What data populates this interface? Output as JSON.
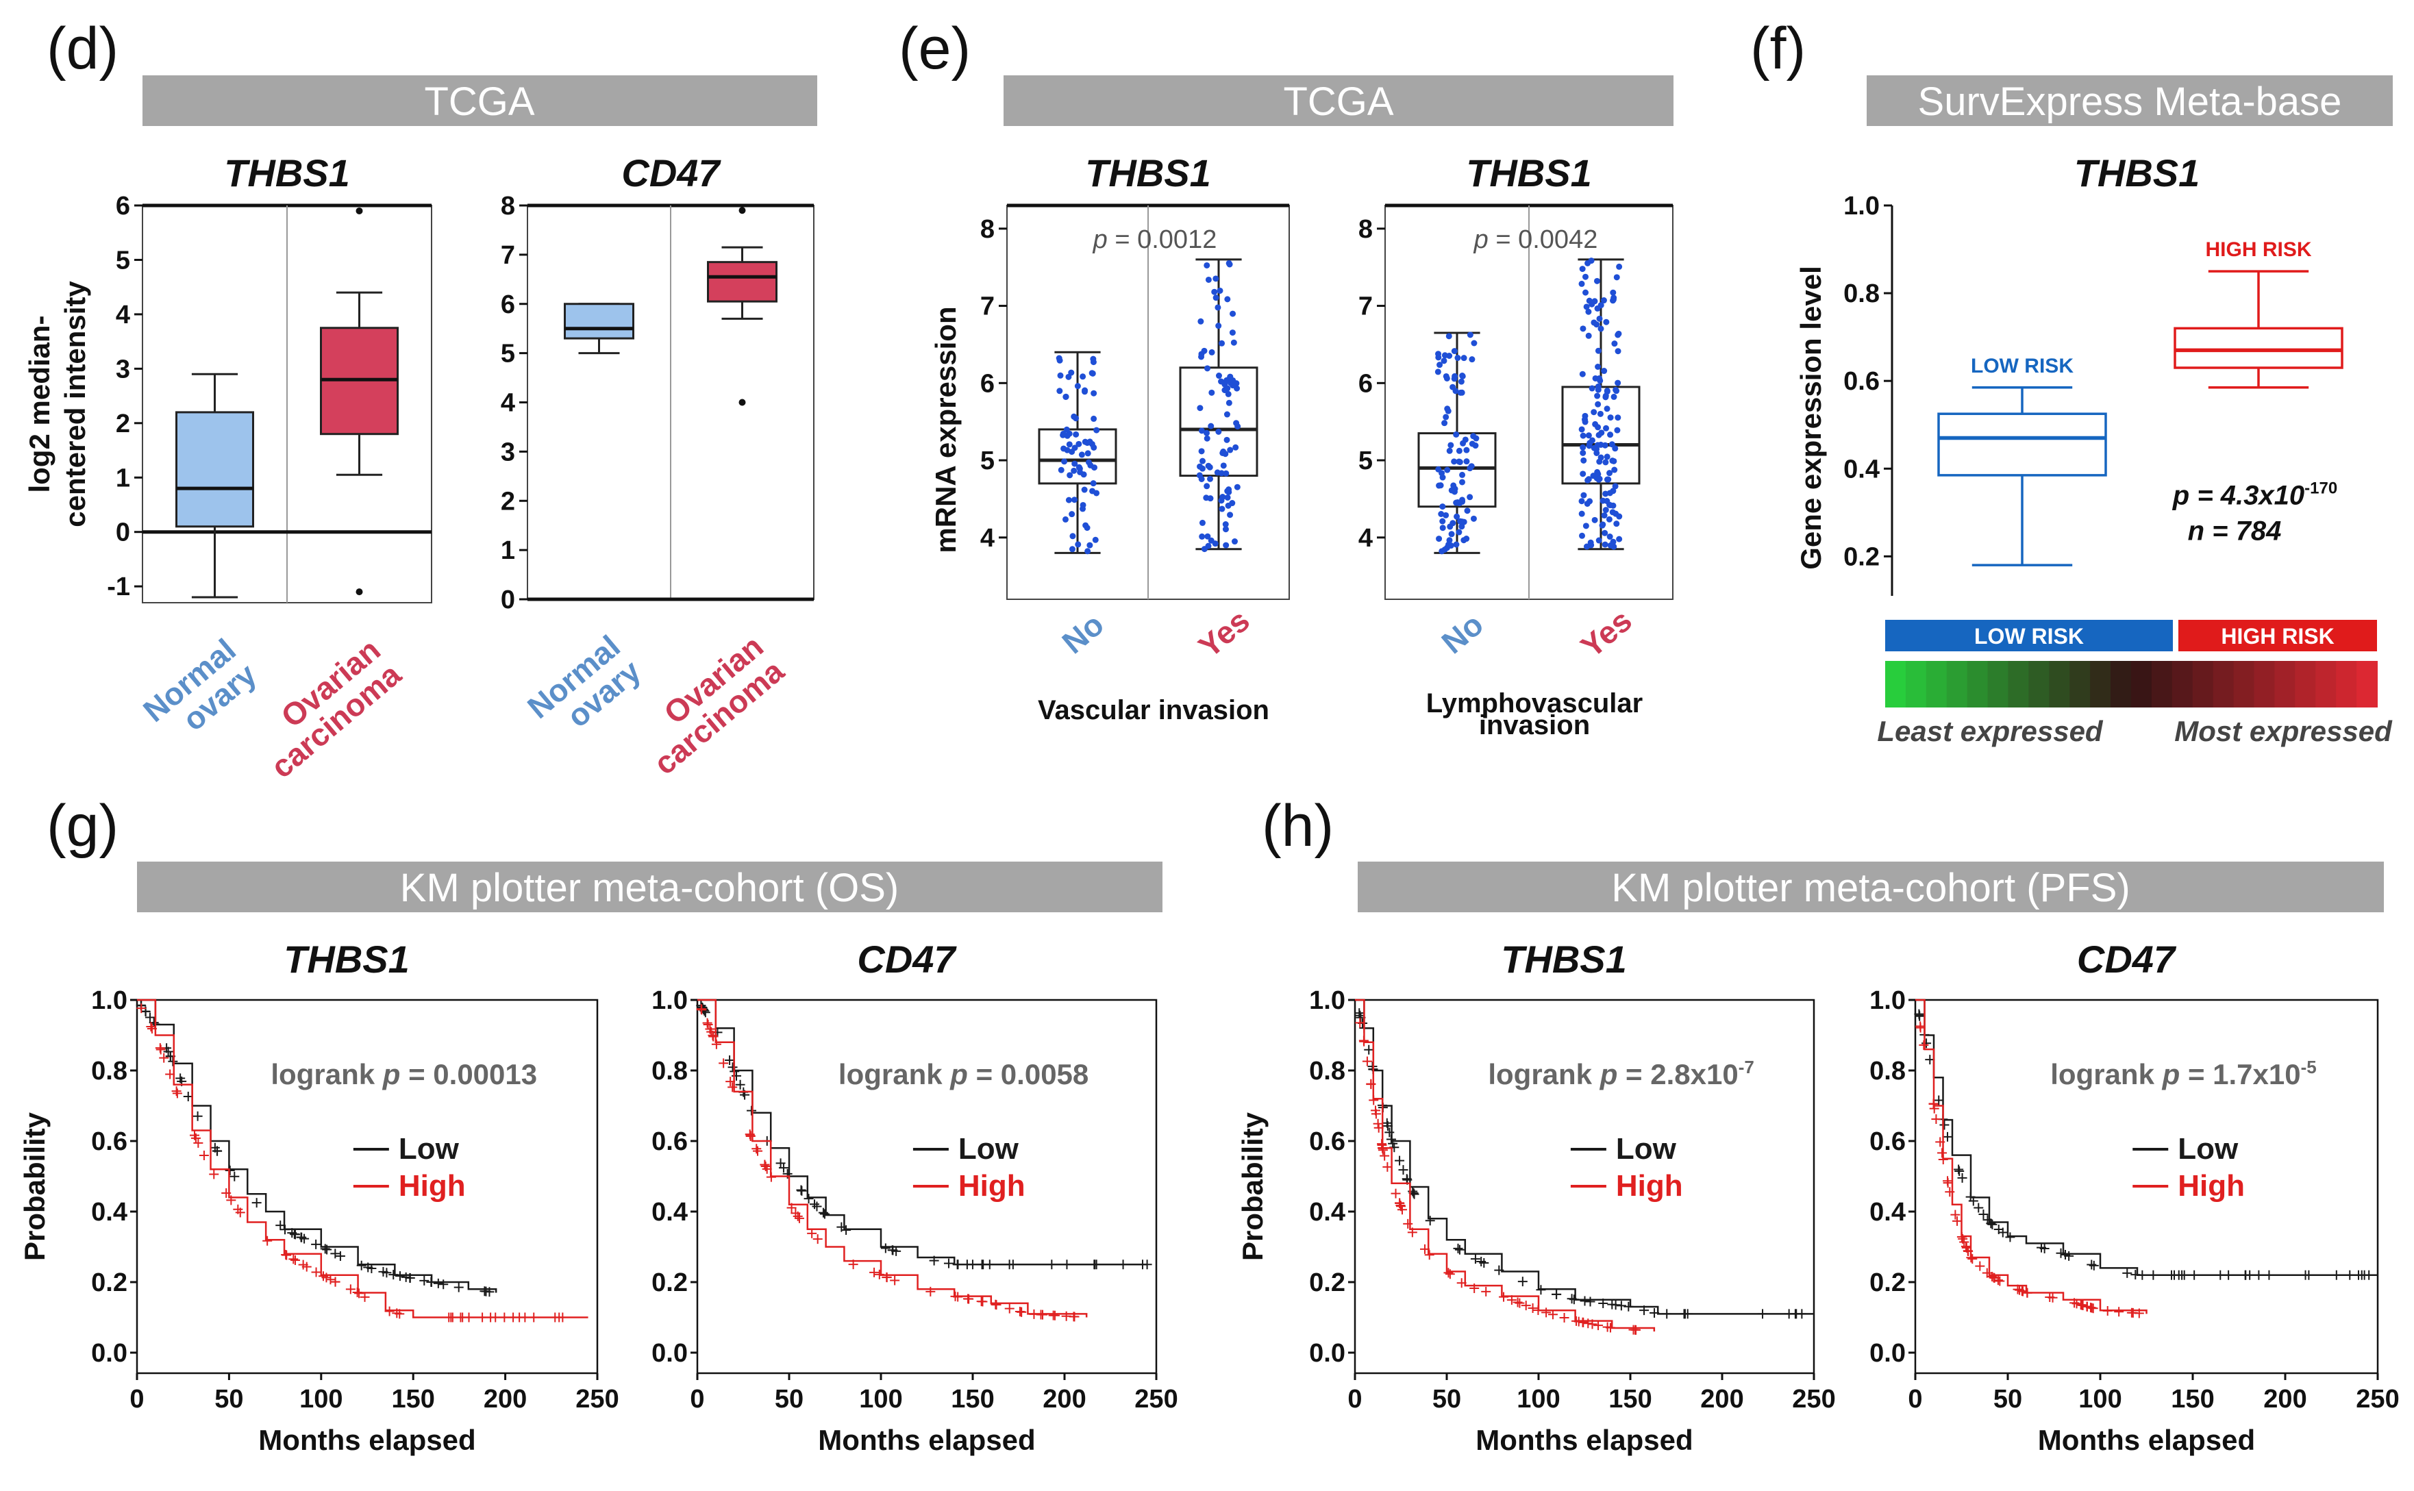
{
  "colors": {
    "banner": "#a6a6a6",
    "normal": "#5b8fc9",
    "normal_fill": "#9dc3ec",
    "carcinoma": "#cc3a55",
    "carcinoma_fill": "#d4405c",
    "dots": "#1f4fd6",
    "low": "#1a1a1a",
    "high": "#e02020",
    "low_risk": "#1666c0",
    "high_risk": "#e01b1b"
  },
  "panels": {
    "d": {
      "letter": "(d)",
      "banner": "TCGA"
    },
    "e": {
      "letter": "(e)",
      "banner": "TCGA"
    },
    "f": {
      "letter": "(f)",
      "banner": "SurvExpress Meta-base"
    },
    "g": {
      "letter": "(g)",
      "banner": "KM plotter meta-cohort (OS)"
    },
    "h": {
      "letter": "(h)",
      "banner": "KM plotter meta-cohort (PFS)"
    }
  },
  "chart_data": [
    {
      "id": "d1",
      "type": "box",
      "title": "THBS1",
      "ylabel": [
        "log2 median-",
        "centered intensity"
      ],
      "ylim": [
        -1.3,
        6
      ],
      "yticks": [
        -1,
        0,
        1,
        2,
        3,
        4,
        5,
        6
      ],
      "categories": [
        {
          "label": [
            "Normal",
            "ovary"
          ],
          "min": -1.2,
          "q1": 0.1,
          "median": 0.8,
          "q3": 2.2,
          "max": 2.9,
          "outliers": []
        },
        {
          "label": [
            "Ovarian",
            "carcinoma"
          ],
          "min": 1.05,
          "q1": 1.8,
          "median": 2.8,
          "q3": 3.75,
          "max": 4.4,
          "outliers": [
            -1.1,
            5.9
          ]
        }
      ]
    },
    {
      "id": "d2",
      "type": "box",
      "title": "CD47",
      "ylim": [
        0,
        8
      ],
      "yticks": [
        0,
        1,
        2,
        3,
        4,
        5,
        6,
        7,
        8
      ],
      "categories": [
        {
          "label": [
            "Normal",
            "ovary"
          ],
          "min": 5.0,
          "q1": 5.3,
          "median": 5.5,
          "q3": 6.0,
          "max": 6.0,
          "outliers": []
        },
        {
          "label": [
            "Ovarian",
            "carcinoma"
          ],
          "min": 5.7,
          "q1": 6.05,
          "median": 6.55,
          "q3": 6.85,
          "max": 7.15,
          "outliers": [
            4.0,
            7.9
          ]
        }
      ]
    },
    {
      "id": "e1",
      "type": "box_scatter",
      "title": "THBS1",
      "ylabel": "mRNA expression",
      "xlabel": "Vascular invasion",
      "annotation": {
        "p_label": "p",
        "p_value": " = 0.0012"
      },
      "ylim": [
        3.2,
        8.3
      ],
      "yticks": [
        4,
        5,
        6,
        7,
        8
      ],
      "categories": [
        {
          "label": "No",
          "min": 3.8,
          "q1": 4.7,
          "median": 5.0,
          "q3": 5.4,
          "max": 6.4,
          "n": 70
        },
        {
          "label": "Yes",
          "min": 3.85,
          "q1": 4.8,
          "median": 5.4,
          "q3": 6.2,
          "max": 7.6,
          "n": 90
        }
      ]
    },
    {
      "id": "e2",
      "type": "box_scatter",
      "title": "THBS1",
      "xlabel": [
        "Lymphovascular",
        "invasion"
      ],
      "annotation": {
        "p_label": "p",
        "p_value": " = 0.0042"
      },
      "ylim": [
        3.2,
        8.3
      ],
      "yticks": [
        4,
        5,
        6,
        7,
        8
      ],
      "categories": [
        {
          "label": "No",
          "min": 3.8,
          "q1": 4.4,
          "median": 4.9,
          "q3": 5.35,
          "max": 6.65,
          "n": 90
        },
        {
          "label": "Yes",
          "min": 3.85,
          "q1": 4.7,
          "median": 5.2,
          "q3": 5.95,
          "max": 7.6,
          "n": 140
        }
      ]
    },
    {
      "id": "f1",
      "type": "box",
      "title": "THBS1",
      "ylabel": "Gene expression level",
      "ylim": [
        0.11,
        1.0
      ],
      "yticks": [
        0.2,
        0.4,
        0.6,
        0.8,
        1.0
      ],
      "annotation": {
        "p_text": "p = 4.3x10",
        "p_exp": "-170",
        "n_text": "n = 784"
      },
      "categories": [
        {
          "label": "LOW RISK",
          "min": 0.18,
          "q1": 0.385,
          "median": 0.47,
          "q3": 0.525,
          "max": 0.585
        },
        {
          "label": "HIGH RISK",
          "min": 0.585,
          "q1": 0.63,
          "median": 0.67,
          "q3": 0.72,
          "max": 0.85
        }
      ],
      "risk_bar": {
        "low": "LOW RISK",
        "high": "HIGH RISK",
        "least": "Least expressed",
        "most": "Most expressed"
      }
    },
    {
      "id": "g1",
      "type": "line",
      "title": "THBS1",
      "xlabel": "Months elapsed",
      "ylabel": "Probability",
      "xlim": [
        0,
        250
      ],
      "ylim": [
        0,
        1
      ],
      "xticks": [
        0,
        50,
        100,
        150,
        200,
        250
      ],
      "yticks": [
        0,
        0.2,
        0.4,
        0.6,
        0.8,
        1.0
      ],
      "annotation": {
        "text": "logrank ",
        "p": "p",
        "value": " = 0.00013",
        "exp": ""
      },
      "series": [
        {
          "name": "Low",
          "x": [
            0,
            10,
            20,
            30,
            40,
            50,
            60,
            70,
            80,
            100,
            120,
            140,
            160,
            180,
            195
          ],
          "y": [
            1.0,
            0.93,
            0.82,
            0.7,
            0.6,
            0.52,
            0.45,
            0.4,
            0.35,
            0.3,
            0.25,
            0.22,
            0.2,
            0.18,
            0.17
          ]
        },
        {
          "name": "High",
          "x": [
            0,
            10,
            20,
            30,
            40,
            50,
            60,
            70,
            80,
            100,
            120,
            135,
            150,
            200,
            245
          ],
          "y": [
            1.0,
            0.9,
            0.76,
            0.63,
            0.52,
            0.44,
            0.37,
            0.32,
            0.28,
            0.22,
            0.17,
            0.12,
            0.1,
            0.1,
            0.1
          ]
        }
      ]
    },
    {
      "id": "g2",
      "type": "line",
      "title": "CD47",
      "xlabel": "Months elapsed",
      "xlim": [
        0,
        250
      ],
      "ylim": [
        0,
        1
      ],
      "xticks": [
        0,
        50,
        100,
        150,
        200,
        250
      ],
      "yticks": [
        0,
        0.2,
        0.4,
        0.6,
        0.8,
        1.0
      ],
      "annotation": {
        "text": "logrank ",
        "p": "p",
        "value": " = 0.0058",
        "exp": ""
      },
      "series": [
        {
          "name": "Low",
          "x": [
            0,
            10,
            20,
            30,
            40,
            50,
            60,
            70,
            80,
            100,
            120,
            140,
            160,
            200,
            245
          ],
          "y": [
            1.0,
            0.92,
            0.8,
            0.68,
            0.58,
            0.5,
            0.44,
            0.39,
            0.35,
            0.3,
            0.27,
            0.25,
            0.25,
            0.25,
            0.25
          ]
        },
        {
          "name": "High",
          "x": [
            0,
            10,
            20,
            30,
            40,
            50,
            60,
            70,
            80,
            100,
            120,
            140,
            160,
            180,
            212
          ],
          "y": [
            1.0,
            0.88,
            0.74,
            0.6,
            0.5,
            0.42,
            0.35,
            0.3,
            0.26,
            0.22,
            0.18,
            0.16,
            0.14,
            0.11,
            0.1
          ]
        }
      ]
    },
    {
      "id": "h1",
      "type": "line",
      "title": "THBS1",
      "xlabel": "Months elapsed",
      "ylabel": "Probability",
      "xlim": [
        0,
        250
      ],
      "ylim": [
        0,
        1
      ],
      "xticks": [
        0,
        50,
        100,
        150,
        200,
        250
      ],
      "yticks": [
        0,
        0.2,
        0.4,
        0.6,
        0.8,
        1.0
      ],
      "annotation": {
        "text": "logrank ",
        "p": "p",
        "value": " = 2.8x10",
        "exp": "-7"
      },
      "series": [
        {
          "name": "Low",
          "x": [
            0,
            5,
            10,
            15,
            20,
            30,
            40,
            50,
            60,
            80,
            100,
            120,
            150,
            165,
            250
          ],
          "y": [
            1.0,
            0.92,
            0.8,
            0.7,
            0.6,
            0.47,
            0.38,
            0.32,
            0.28,
            0.23,
            0.18,
            0.15,
            0.13,
            0.11,
            0.11
          ]
        },
        {
          "name": "High",
          "x": [
            0,
            5,
            10,
            15,
            20,
            30,
            40,
            50,
            60,
            80,
            100,
            120,
            140,
            163
          ],
          "y": [
            1.0,
            0.88,
            0.72,
            0.58,
            0.48,
            0.35,
            0.28,
            0.23,
            0.19,
            0.16,
            0.12,
            0.09,
            0.07,
            0.06
          ]
        }
      ]
    },
    {
      "id": "h2",
      "type": "line",
      "title": "CD47",
      "xlabel": "Months elapsed",
      "xlim": [
        0,
        250
      ],
      "ylim": [
        0,
        1
      ],
      "xticks": [
        0,
        50,
        100,
        150,
        200,
        250
      ],
      "yticks": [
        0,
        0.2,
        0.4,
        0.6,
        0.8,
        1.0
      ],
      "annotation": {
        "text": "logrank ",
        "p": "p",
        "value": " = 1.7x10",
        "exp": "-5"
      },
      "series": [
        {
          "name": "Low",
          "x": [
            0,
            5,
            10,
            15,
            20,
            30,
            40,
            50,
            60,
            80,
            100,
            120,
            250
          ],
          "y": [
            1.0,
            0.9,
            0.78,
            0.66,
            0.56,
            0.44,
            0.37,
            0.33,
            0.31,
            0.28,
            0.24,
            0.22,
            0.22
          ]
        },
        {
          "name": "High",
          "x": [
            0,
            5,
            10,
            15,
            20,
            25,
            30,
            40,
            50,
            60,
            80,
            100,
            125
          ],
          "y": [
            1.0,
            0.86,
            0.7,
            0.55,
            0.42,
            0.33,
            0.27,
            0.22,
            0.19,
            0.17,
            0.15,
            0.12,
            0.11
          ]
        }
      ]
    }
  ]
}
